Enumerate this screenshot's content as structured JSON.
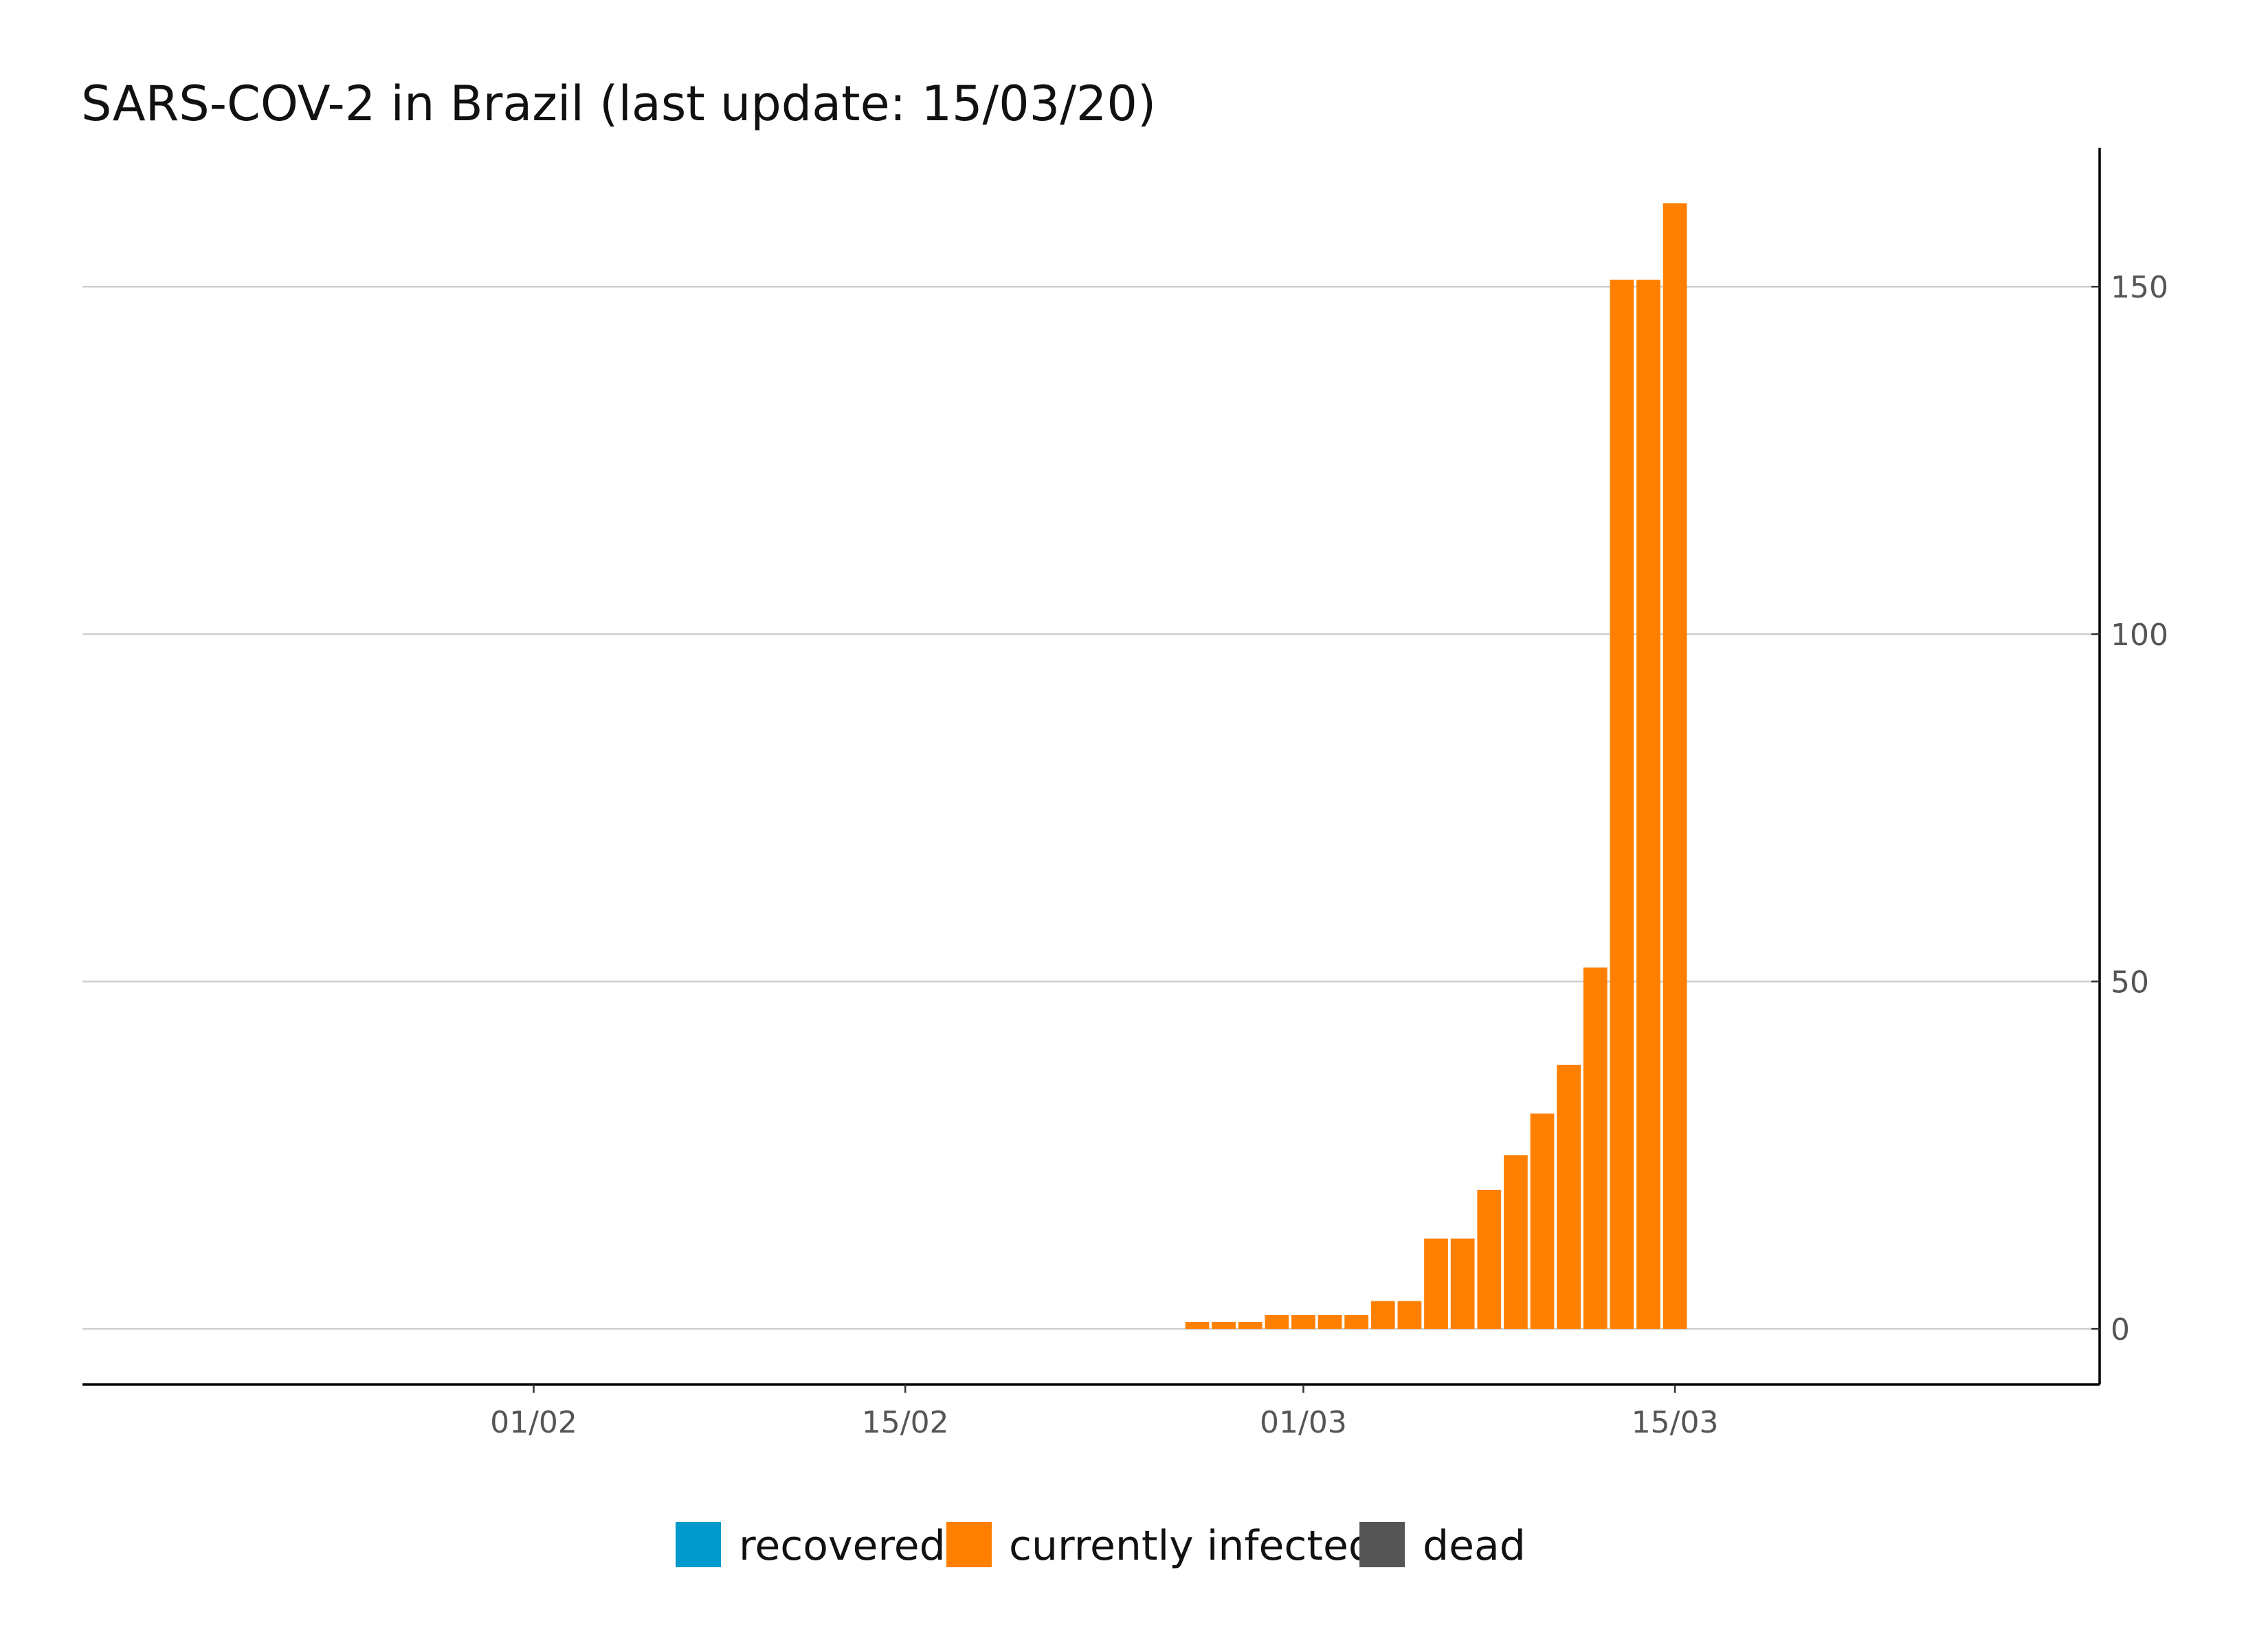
{
  "chart_data": {
    "type": "bar",
    "stacked": true,
    "title": "SARS-COV-2 in Brazil (last update: 15/03/20)",
    "xlabel": "",
    "ylabel": "",
    "y_axis_position": "right",
    "ylim": [
      -8,
      170
    ],
    "yticks": [
      0,
      50,
      100,
      150
    ],
    "xlim_day": [
      -17,
      59
    ],
    "xticks": [
      {
        "day": 0,
        "label": "01/02"
      },
      {
        "day": 14,
        "label": "15/02"
      },
      {
        "day": 29,
        "label": "01/03"
      },
      {
        "day": 43,
        "label": "15/03"
      }
    ],
    "categories": [
      "26/02",
      "27/02",
      "28/02",
      "29/02",
      "01/03",
      "02/03",
      "03/03",
      "04/03",
      "05/03",
      "06/03",
      "07/03",
      "08/03",
      "09/03",
      "10/03",
      "11/03",
      "12/03",
      "13/03",
      "14/03",
      "15/03"
    ],
    "days": [
      25,
      26,
      27,
      28,
      29,
      30,
      31,
      32,
      33,
      34,
      35,
      36,
      37,
      38,
      39,
      40,
      41,
      42,
      43
    ],
    "series": [
      {
        "name": "recovered",
        "color": "#0099cc",
        "values": [
          0,
          0,
          0,
          0,
          0,
          0,
          0,
          0,
          0,
          0,
          0,
          0,
          0,
          0,
          0,
          0,
          0,
          0,
          0
        ]
      },
      {
        "name": "currently infected",
        "color": "#ff8000",
        "values": [
          1,
          1,
          1,
          2,
          2,
          2,
          2,
          4,
          4,
          13,
          13,
          20,
          25,
          31,
          38,
          52,
          151,
          151,
          162
        ]
      },
      {
        "name": "dead",
        "color": "#555555",
        "values": [
          0,
          0,
          0,
          0,
          0,
          0,
          0,
          0,
          0,
          0,
          0,
          0,
          0,
          0,
          0,
          0,
          0,
          0,
          0
        ]
      }
    ],
    "legend": {
      "position": "bottom",
      "items": [
        {
          "label": "recovered",
          "color": "#0099cc"
        },
        {
          "label": "currently infected",
          "color": "#ff8000"
        },
        {
          "label": "dead",
          "color": "#555555"
        }
      ]
    }
  }
}
